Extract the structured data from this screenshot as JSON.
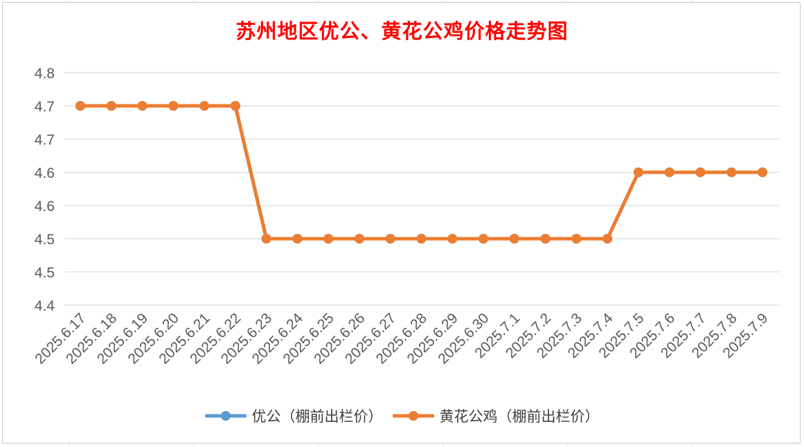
{
  "chart_data": {
    "type": "line",
    "title": "苏州地区优公、黄花公鸡价格走势图",
    "categories": [
      "2025.6.17",
      "2025.6.18",
      "2025.6.19",
      "2025.6.20",
      "2025.6.21",
      "2025.6.22",
      "2025.6.23",
      "2025.6.24",
      "2025.6.25",
      "2025.6.26",
      "2025.6.27",
      "2025.6.28",
      "2025.6.29",
      "2025.6.30",
      "2025.7.1",
      "2025.7.2",
      "2025.7.3",
      "2025.7.4",
      "2025.7.5",
      "2025.7.6",
      "2025.7.7",
      "2025.7.8",
      "2025.7.9"
    ],
    "ytick_labels": [
      "4.8",
      "4.7",
      "4.7",
      "4.6",
      "4.6",
      "4.5",
      "4.5",
      "4.4"
    ],
    "ylim": [
      4.4,
      4.75
    ],
    "grid": true,
    "legend_position": "bottom",
    "series": [
      {
        "name": "优公（棚前出栏价）",
        "color": "#5b9bd5",
        "values": [
          4.7,
          4.7,
          4.7,
          4.7,
          4.7,
          4.7,
          4.5,
          4.5,
          4.5,
          4.5,
          4.5,
          4.5,
          4.5,
          4.5,
          4.5,
          4.5,
          4.5,
          4.5,
          4.6,
          4.6,
          4.6,
          4.6,
          4.6
        ]
      },
      {
        "name": "黄花公鸡（棚前出栏价）",
        "color": "#ed7d31",
        "values": [
          4.7,
          4.7,
          4.7,
          4.7,
          4.7,
          4.7,
          4.5,
          4.5,
          4.5,
          4.5,
          4.5,
          4.5,
          4.5,
          4.5,
          4.5,
          4.5,
          4.5,
          4.5,
          4.6,
          4.6,
          4.6,
          4.6,
          4.6
        ]
      }
    ]
  }
}
